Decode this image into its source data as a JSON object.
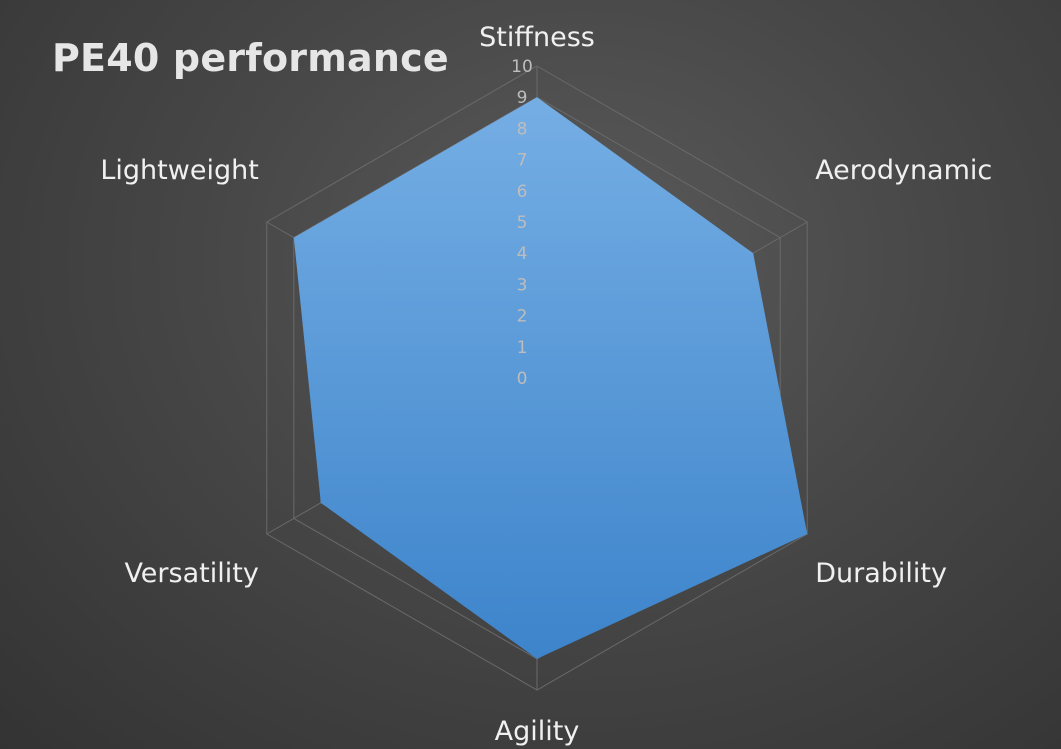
{
  "chart_data": {
    "type": "radar",
    "title": "PE40 performance",
    "categories": [
      "Stiffness",
      "Aerodynamic",
      "Durability",
      "Agility",
      "Versatility",
      "Lightweight"
    ],
    "series": [
      {
        "values": [
          9,
          8,
          10,
          9,
          8,
          9
        ]
      }
    ],
    "rlim": [
      0,
      10
    ],
    "ticks": [
      "0",
      "1",
      "2",
      "3",
      "4",
      "5",
      "6",
      "7",
      "8",
      "9",
      "10"
    ],
    "colors": {
      "series_fill_top": "#75aee4",
      "series_fill_bottom": "#3d84cb",
      "gridline": "#6a6a6a"
    },
    "grid": true,
    "legend": false
  }
}
